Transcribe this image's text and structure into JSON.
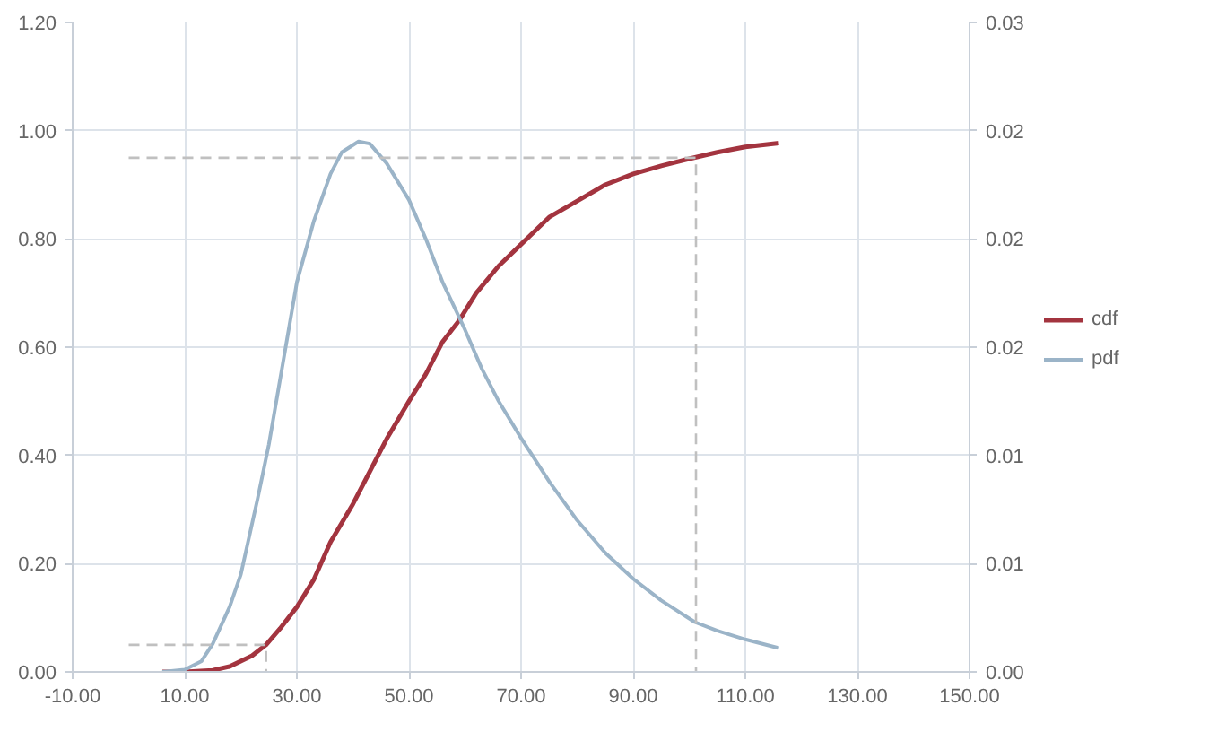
{
  "chart_data": {
    "type": "line",
    "xlim": [
      -10,
      150
    ],
    "xticks": [
      {
        "value": -10,
        "label": "-10.00"
      },
      {
        "value": 10,
        "label": "10.00"
      },
      {
        "value": 30,
        "label": "30.00"
      },
      {
        "value": 50,
        "label": "50.00"
      },
      {
        "value": 70,
        "label": "70.00"
      },
      {
        "value": 90,
        "label": "90.00"
      },
      {
        "value": 110,
        "label": "110.00"
      },
      {
        "value": 130,
        "label": "130.00"
      },
      {
        "value": 150,
        "label": "150.00"
      }
    ],
    "ylim": [
      0,
      1.2
    ],
    "yticks": [
      {
        "value": 0,
        "label": "0.00"
      },
      {
        "value": 0.2,
        "label": "0.20"
      },
      {
        "value": 0.4,
        "label": "0.40"
      },
      {
        "value": 0.6,
        "label": "0.60"
      },
      {
        "value": 0.8,
        "label": "0.80"
      },
      {
        "value": 1.0,
        "label": "1.00"
      },
      {
        "value": 1.2,
        "label": "1.20"
      }
    ],
    "y2lim": [
      0,
      0.03
    ],
    "y2ticks": [
      {
        "value": 0,
        "label": "0.00"
      },
      {
        "value": 0.005,
        "label": "0.01"
      },
      {
        "value": 0.01,
        "label": "0.01"
      },
      {
        "value": 0.015,
        "label": "0.02"
      },
      {
        "value": 0.02,
        "label": "0.02"
      },
      {
        "value": 0.025,
        "label": "0.02"
      },
      {
        "value": 0.03,
        "label": "0.03"
      }
    ],
    "grid": true,
    "legend": "right",
    "marker": "none",
    "line_style": "solid",
    "series": [
      {
        "name": "cdf",
        "color": "#a3343f",
        "x": [
          6,
          10,
          15,
          18,
          20,
          22,
          24.5,
          27,
          30,
          33,
          36,
          40,
          43,
          46,
          50,
          53,
          56,
          59,
          62,
          66,
          70,
          75,
          80,
          85,
          90,
          95,
          100,
          105,
          110,
          116
        ],
        "values": [
          0,
          0,
          0.003,
          0.01,
          0.02,
          0.03,
          0.05,
          0.08,
          0.12,
          0.17,
          0.24,
          0.31,
          0.37,
          0.43,
          0.5,
          0.55,
          0.61,
          0.65,
          0.7,
          0.75,
          0.79,
          0.84,
          0.87,
          0.9,
          0.92,
          0.935,
          0.948,
          0.96,
          0.97,
          0.977
        ]
      },
      {
        "name": "pdf",
        "color": "#9bb4c8",
        "axis": "y2",
        "x": [
          6,
          10,
          13,
          15,
          18,
          20,
          23,
          25,
          28,
          30,
          33,
          36,
          38,
          41,
          43,
          46,
          50,
          53,
          56,
          60,
          63,
          66,
          70,
          75,
          80,
          85,
          90,
          95,
          101,
          105,
          110,
          116
        ],
        "values": [
          0,
          0.0001,
          0.0005,
          0.0013,
          0.003,
          0.0045,
          0.008,
          0.0105,
          0.015,
          0.018,
          0.0208,
          0.023,
          0.024,
          0.0245,
          0.0244,
          0.0235,
          0.0218,
          0.02,
          0.018,
          0.0158,
          0.014,
          0.0125,
          0.0108,
          0.0088,
          0.007,
          0.0055,
          0.0043,
          0.0033,
          0.0023,
          0.0019,
          0.0015,
          0.0011
        ]
      },
      {
        "color": "#c0c0c0",
        "line_style": "dashed",
        "x": [
          0,
          101.2,
          101.2
        ],
        "values": [
          0.95,
          0.95,
          0
        ]
      },
      {
        "color": "#c0c0c0",
        "line_style": "dashed",
        "x": [
          0,
          24.5,
          24.5
        ],
        "values": [
          0.05,
          0.05,
          0
        ]
      }
    ]
  }
}
